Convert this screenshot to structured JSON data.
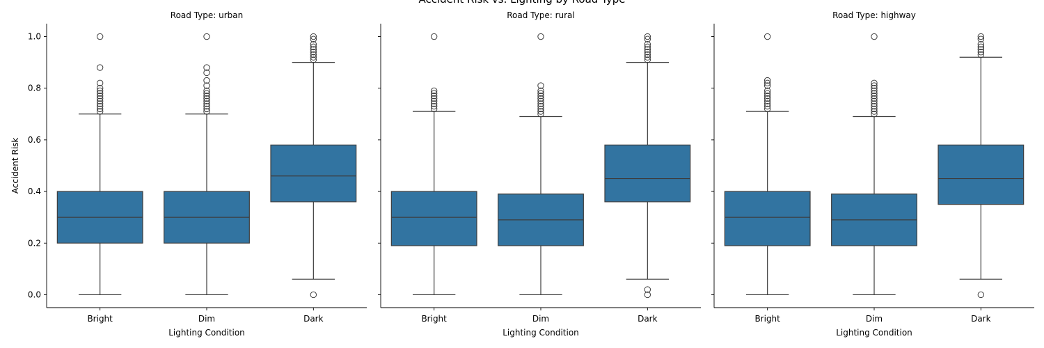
{
  "suptitle": "Accident Risk vs. Lighting by Road Type",
  "chart_data": {
    "type": "box",
    "xlabel": "Lighting Condition",
    "ylabel": "Accident Risk",
    "ylim": [
      -0.05,
      1.05
    ],
    "yticks": [
      0.0,
      0.2,
      0.4,
      0.6,
      0.8,
      1.0
    ],
    "yticklabels": [
      "0.0",
      "0.2",
      "0.4",
      "0.6",
      "0.8",
      "1.0"
    ],
    "categories": [
      "Bright",
      "Dim",
      "Dark"
    ],
    "box_color": "#3274a1",
    "line_color": "#3d3d3d",
    "panels": [
      {
        "title": "Road Type: urban",
        "boxes": [
          {
            "category": "Bright",
            "q1": 0.2,
            "median": 0.3,
            "q3": 0.4,
            "whisker_low": 0.0,
            "whisker_high": 0.7,
            "outliers": [
              0.71,
              0.72,
              0.73,
              0.74,
              0.75,
              0.76,
              0.77,
              0.78,
              0.79,
              0.8,
              0.82,
              0.88,
              1.0
            ]
          },
          {
            "category": "Dim",
            "q1": 0.2,
            "median": 0.3,
            "q3": 0.4,
            "whisker_low": 0.0,
            "whisker_high": 0.7,
            "outliers": [
              0.71,
              0.72,
              0.73,
              0.74,
              0.75,
              0.76,
              0.77,
              0.78,
              0.79,
              0.81,
              0.83,
              0.86,
              0.88,
              1.0
            ]
          },
          {
            "category": "Dark",
            "q1": 0.36,
            "median": 0.46,
            "q3": 0.58,
            "whisker_low": 0.06,
            "whisker_high": 0.9,
            "outliers": [
              0.0,
              0.91,
              0.92,
              0.93,
              0.94,
              0.95,
              0.96,
              0.97,
              0.99,
              1.0
            ]
          }
        ]
      },
      {
        "title": "Road Type: rural",
        "boxes": [
          {
            "category": "Bright",
            "q1": 0.19,
            "median": 0.3,
            "q3": 0.4,
            "whisker_low": 0.0,
            "whisker_high": 0.71,
            "outliers": [
              0.72,
              0.73,
              0.74,
              0.75,
              0.76,
              0.77,
              0.78,
              0.79,
              1.0
            ]
          },
          {
            "category": "Dim",
            "q1": 0.19,
            "median": 0.29,
            "q3": 0.39,
            "whisker_low": 0.0,
            "whisker_high": 0.69,
            "outliers": [
              0.7,
              0.71,
              0.72,
              0.73,
              0.74,
              0.75,
              0.76,
              0.77,
              0.78,
              0.79,
              0.81,
              1.0
            ]
          },
          {
            "category": "Dark",
            "q1": 0.36,
            "median": 0.45,
            "q3": 0.58,
            "whisker_low": 0.06,
            "whisker_high": 0.9,
            "outliers": [
              0.0,
              0.02,
              0.91,
              0.92,
              0.93,
              0.94,
              0.95,
              0.96,
              0.97,
              0.99,
              1.0
            ]
          }
        ]
      },
      {
        "title": "Road Type: highway",
        "boxes": [
          {
            "category": "Bright",
            "q1": 0.19,
            "median": 0.3,
            "q3": 0.4,
            "whisker_low": 0.0,
            "whisker_high": 0.71,
            "outliers": [
              0.72,
              0.73,
              0.74,
              0.75,
              0.76,
              0.77,
              0.78,
              0.79,
              0.81,
              0.82,
              0.83,
              1.0
            ]
          },
          {
            "category": "Dim",
            "q1": 0.19,
            "median": 0.29,
            "q3": 0.39,
            "whisker_low": 0.0,
            "whisker_high": 0.69,
            "outliers": [
              0.7,
              0.71,
              0.72,
              0.73,
              0.74,
              0.75,
              0.76,
              0.77,
              0.78,
              0.79,
              0.8,
              0.81,
              0.82,
              1.0
            ]
          },
          {
            "category": "Dark",
            "q1": 0.35,
            "median": 0.45,
            "q3": 0.58,
            "whisker_low": 0.06,
            "whisker_high": 0.92,
            "outliers": [
              0.0,
              0.93,
              0.94,
              0.95,
              0.96,
              0.97,
              0.99,
              1.0
            ]
          }
        ]
      }
    ]
  }
}
